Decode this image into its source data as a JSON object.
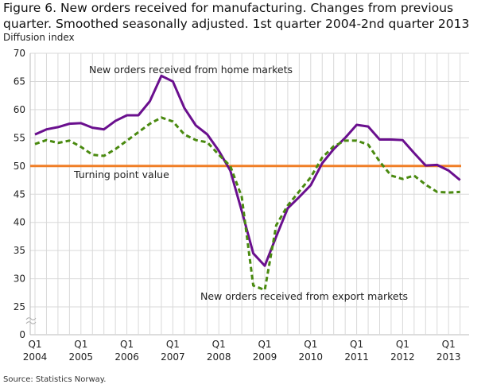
{
  "title": "Figure 6. New orders received for manufacturing. Changes from previous quarter. Smoothed seasonally adjusted. 1st quarter 2004-2nd quarter 2013",
  "source": "Source: Statistics Norway.",
  "chart_data": {
    "type": "line",
    "title": "Figure 6. New orders received for manufacturing. Changes from previous quarter. Smoothed seasonally adjusted. 1st quarter 2004-2nd quarter 2013",
    "ylabel": "Diffusion index",
    "xlabel": "",
    "ylim": [
      0,
      70
    ],
    "axis_break": [
      0,
      25
    ],
    "yticks": [
      "0",
      "25",
      "30",
      "35",
      "40",
      "45",
      "50",
      "55",
      "60",
      "65",
      "70"
    ],
    "xtick_labels": [
      {
        "q": "Q1",
        "year": "2004"
      },
      {
        "q": "Q1",
        "year": "2005"
      },
      {
        "q": "Q1",
        "year": "2006"
      },
      {
        "q": "Q1",
        "year": "2007"
      },
      {
        "q": "Q1",
        "year": "2008"
      },
      {
        "q": "Q1",
        "year": "2009"
      },
      {
        "q": "Q1",
        "year": "2010"
      },
      {
        "q": "Q1",
        "year": "2011"
      },
      {
        "q": "Q1",
        "year": "2012"
      },
      {
        "q": "Q1",
        "year": "2013"
      }
    ],
    "x_start": "2004Q1",
    "x_end": "2013Q2",
    "grid": true,
    "series": [
      {
        "name": "New orders received from home markets",
        "color": "#6a0f8e",
        "style": "solid",
        "values": [
          55.6,
          56.5,
          56.9,
          57.5,
          57.6,
          56.8,
          56.5,
          58.0,
          59.0,
          59.0,
          61.5,
          66.0,
          65.0,
          60.3,
          57.2,
          55.6,
          52.7,
          49.2,
          42.0,
          34.5,
          32.3,
          37.5,
          42.5,
          44.5,
          46.6,
          50.5,
          53.0,
          55.0,
          57.3,
          57.0,
          54.7,
          54.7,
          54.6,
          52.3,
          50.1,
          50.2,
          49.2,
          47.5
        ]
      },
      {
        "name": "New orders received from export markets",
        "color": "#4a8a10",
        "style": "dashed",
        "values": [
          53.9,
          54.6,
          54.1,
          54.5,
          53.4,
          52.0,
          51.8,
          53.0,
          54.5,
          56.0,
          57.5,
          58.6,
          57.9,
          55.6,
          54.6,
          54.2,
          52.0,
          50.0,
          44.5,
          28.8,
          28.0,
          39.5,
          43.0,
          45.5,
          48.0,
          51.5,
          53.5,
          54.5,
          54.5,
          53.8,
          50.8,
          48.3,
          47.7,
          48.3,
          46.7,
          45.4,
          45.3,
          45.4
        ]
      }
    ],
    "reference_line": {
      "name": "Turning point value",
      "value": 50,
      "color": "#f07e26"
    }
  }
}
